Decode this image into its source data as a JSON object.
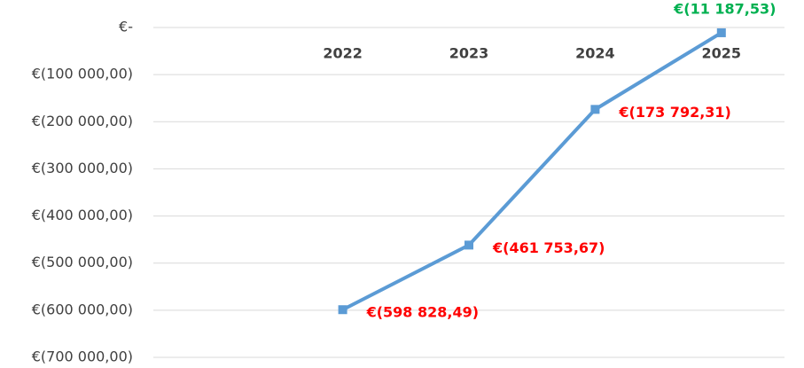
{
  "chart_data": {
    "type": "line",
    "categories": [
      null,
      "2022",
      "2023",
      "2024",
      "2025"
    ],
    "series": [
      {
        "color": "#5b9bd5",
        "values": [
          null,
          -598828.49,
          -461753.67,
          -173792.31,
          -11187.53
        ],
        "value_labels": [
          null,
          "€(598 828,49)",
          "€(461 753,67)",
          "€(173 792,31)",
          "€(11 187,53)"
        ],
        "label_colors": [
          null,
          "#ff0000",
          "#ff0000",
          "#ff0000",
          "#00b050"
        ]
      }
    ],
    "ylim": [
      -700000,
      0
    ],
    "yticks": [
      {
        "value": 0,
        "label": "€-"
      },
      {
        "value": -100000,
        "label": "€(100 000,00)"
      },
      {
        "value": -200000,
        "label": "€(200 000,00)"
      },
      {
        "value": -300000,
        "label": "€(300 000,00)"
      },
      {
        "value": -400000,
        "label": "€(400 000,00)"
      },
      {
        "value": -500000,
        "label": "€(500 000,00)"
      },
      {
        "value": -600000,
        "label": "€(600 000,00)"
      },
      {
        "value": -700000,
        "label": "€(700 000,00)"
      }
    ],
    "grid": true
  }
}
